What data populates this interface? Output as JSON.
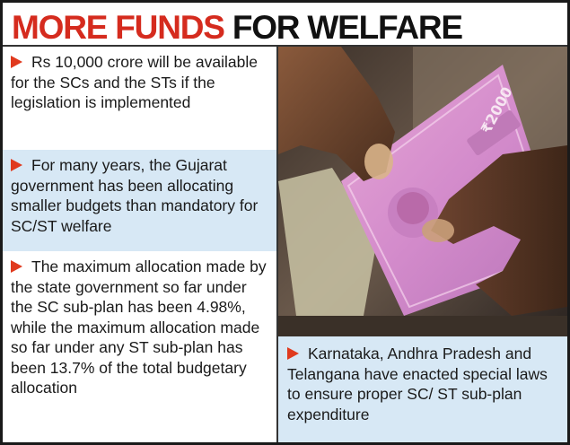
{
  "header": {
    "title_red": "MORE FUNDS",
    "title_black": "FOR WELFARE"
  },
  "points": [
    {
      "text": "Rs 10,000 crore will be available for the SCs and the STs if the legislation is implemented"
    },
    {
      "text": "For many years, the Gujarat government has been allocating smaller budgets than mandatory for SC/ST welfare"
    },
    {
      "text": "The maximum allocation made by the state government so far under the SC sub-plan has been 4.98%, while the maximum allocation made so far under any ST sub-plan has been 13.7% of the total budgetary allocation"
    }
  ],
  "caption": {
    "text": "Karnataka, Andhra Pradesh and Telangana have enacted special laws to ensure proper SC/ ST sub-plan expenditure"
  },
  "photo": {
    "banknote_text": "₹2000"
  },
  "colors": {
    "accent_red": "#d52b1e",
    "arrow": "#e03a1e",
    "panel_blue": "#d7e8f5"
  }
}
